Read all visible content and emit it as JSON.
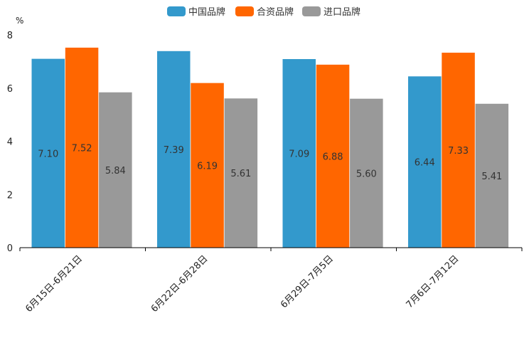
{
  "chart_data": {
    "type": "bar",
    "title": "",
    "ylabel": "%",
    "xlabel": "",
    "ylim": [
      0,
      8
    ],
    "yticks": [
      0,
      2,
      4,
      6,
      8
    ],
    "categories": [
      "6月15日-6月21日",
      "6月22日-6月28日",
      "6月29日-7月5日",
      "7月6日-7月12日"
    ],
    "series": [
      {
        "name": "中国品牌",
        "color": "#3399cc",
        "values": [
          7.1,
          7.39,
          7.09,
          6.44
        ],
        "labels": [
          "7.10",
          "7.39",
          "7.09",
          "6.44"
        ]
      },
      {
        "name": "合资品牌",
        "color": "#ff6600",
        "values": [
          7.52,
          6.19,
          6.88,
          7.33
        ],
        "labels": [
          "7.52",
          "6.19",
          "6.88",
          "7.33"
        ]
      },
      {
        "name": "进口品牌",
        "color": "#999999",
        "values": [
          5.84,
          5.61,
          5.6,
          5.41
        ],
        "labels": [
          "5.84",
          "5.61",
          "5.60",
          "5.41"
        ]
      }
    ],
    "legend_position": "top-center",
    "grid": false
  }
}
